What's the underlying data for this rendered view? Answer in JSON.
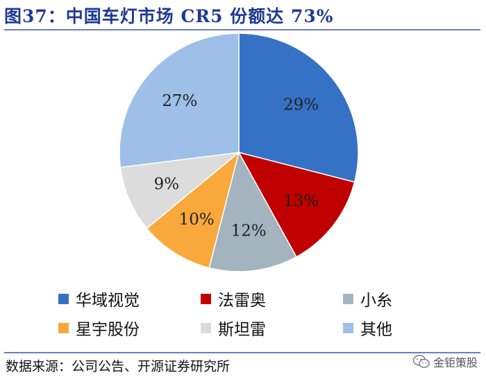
{
  "title": "图37：中国车灯市场 CR5 份额达 73%",
  "source": "数据来源：公司公告、开源证券研究所",
  "watermark": "金钜策股",
  "chart_data": {
    "type": "pie",
    "title": "图37：中国车灯市场 CR5 份额达 73%",
    "legend_position": "bottom",
    "slices": [
      {
        "name": "华域视觉",
        "value": 29,
        "label": "29%",
        "color": "#3572c6"
      },
      {
        "name": "法雷奥",
        "value": 13,
        "label": "13%",
        "color": "#c00000"
      },
      {
        "name": "小糸",
        "value": 12,
        "label": "12%",
        "color": "#a4b4bf"
      },
      {
        "name": "星宇股份",
        "value": 10,
        "label": "10%",
        "color": "#f9a83c"
      },
      {
        "name": "斯坦雷",
        "value": 9,
        "label": "9%",
        "color": "#dcdcdc"
      },
      {
        "name": "其他",
        "value": 27,
        "label": "27%",
        "color": "#9dbfe8"
      }
    ]
  }
}
